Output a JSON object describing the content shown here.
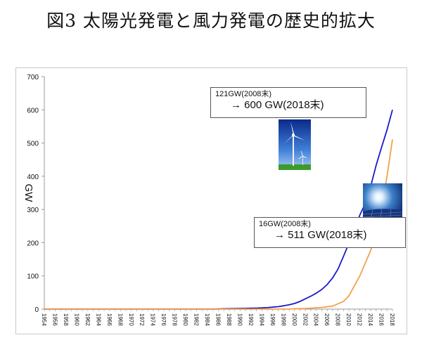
{
  "title": "図3 太陽光発電と風力発電の歴史的拡大",
  "chart_data": {
    "type": "line",
    "ylabel": "GW",
    "ylim": [
      0,
      700
    ],
    "yticks": [
      0,
      100,
      200,
      300,
      400,
      500,
      600,
      700
    ],
    "x": [
      1954,
      1955,
      1956,
      1957,
      1958,
      1959,
      1960,
      1961,
      1962,
      1963,
      1964,
      1965,
      1966,
      1967,
      1968,
      1969,
      1970,
      1971,
      1972,
      1973,
      1974,
      1975,
      1976,
      1977,
      1978,
      1979,
      1980,
      1981,
      1982,
      1983,
      1984,
      1985,
      1986,
      1987,
      1988,
      1989,
      1990,
      1991,
      1992,
      1993,
      1994,
      1995,
      1996,
      1997,
      1998,
      1999,
      2000,
      2001,
      2002,
      2003,
      2004,
      2005,
      2006,
      2007,
      2008,
      2009,
      2010,
      2011,
      2012,
      2013,
      2014,
      2015,
      2016,
      2017,
      2018
    ],
    "xticks": [
      "1954",
      "1956",
      "1958",
      "1960",
      "1962",
      "1964",
      "1966",
      "1968",
      "1970",
      "1972",
      "1974",
      "1976",
      "1978",
      "1980",
      "1982",
      "1984",
      "1986",
      "1988",
      "1990",
      "1992",
      "1994",
      "1996",
      "1998",
      "2000",
      "2002",
      "2004",
      "2006",
      "2008",
      "2010",
      "2012",
      "2014",
      "2016",
      "2018"
    ],
    "series": [
      {
        "color": "#1a1acc",
        "values": [
          0,
          0,
          0,
          0,
          0,
          0,
          0,
          0,
          0,
          0,
          0,
          0,
          0,
          0,
          0,
          0,
          0,
          0,
          0,
          0,
          0,
          0,
          0,
          0,
          0,
          0,
          0,
          0,
          0,
          0,
          0,
          0,
          0.5,
          1,
          1.2,
          1.5,
          2,
          2.2,
          2.5,
          3,
          3.5,
          4.5,
          6,
          7.5,
          10,
          13,
          17,
          23,
          31,
          39,
          48,
          59,
          74,
          94,
          121,
          159,
          198,
          238,
          283,
          318,
          370,
          433,
          487,
          540,
          600
        ]
      },
      {
        "color": "#f5a04a",
        "values": [
          0,
          0,
          0,
          0,
          0,
          0,
          0,
          0,
          0,
          0,
          0,
          0,
          0,
          0,
          0,
          0,
          0,
          0,
          0,
          0,
          0,
          0,
          0,
          0,
          0,
          0,
          0,
          0,
          0,
          0,
          0,
          0,
          0,
          0,
          0,
          0,
          0,
          0,
          0,
          0,
          0,
          0,
          0,
          0,
          0,
          0,
          1,
          1.5,
          2,
          3,
          4,
          5,
          7,
          9,
          16,
          23,
          40,
          70,
          100,
          138,
          177,
          227,
          303,
          400,
          511
        ]
      }
    ]
  },
  "annotations": {
    "wind": {
      "line1": "121GW(2008末)",
      "line2": "→ 600 GW(2018末)"
    },
    "solar": {
      "line1": "16GW(2008末)",
      "line2": "→ 511 GW(2018末)"
    }
  },
  "images": {
    "wind": "wind-turbine-photo",
    "solar": "solar-panel-photo"
  }
}
